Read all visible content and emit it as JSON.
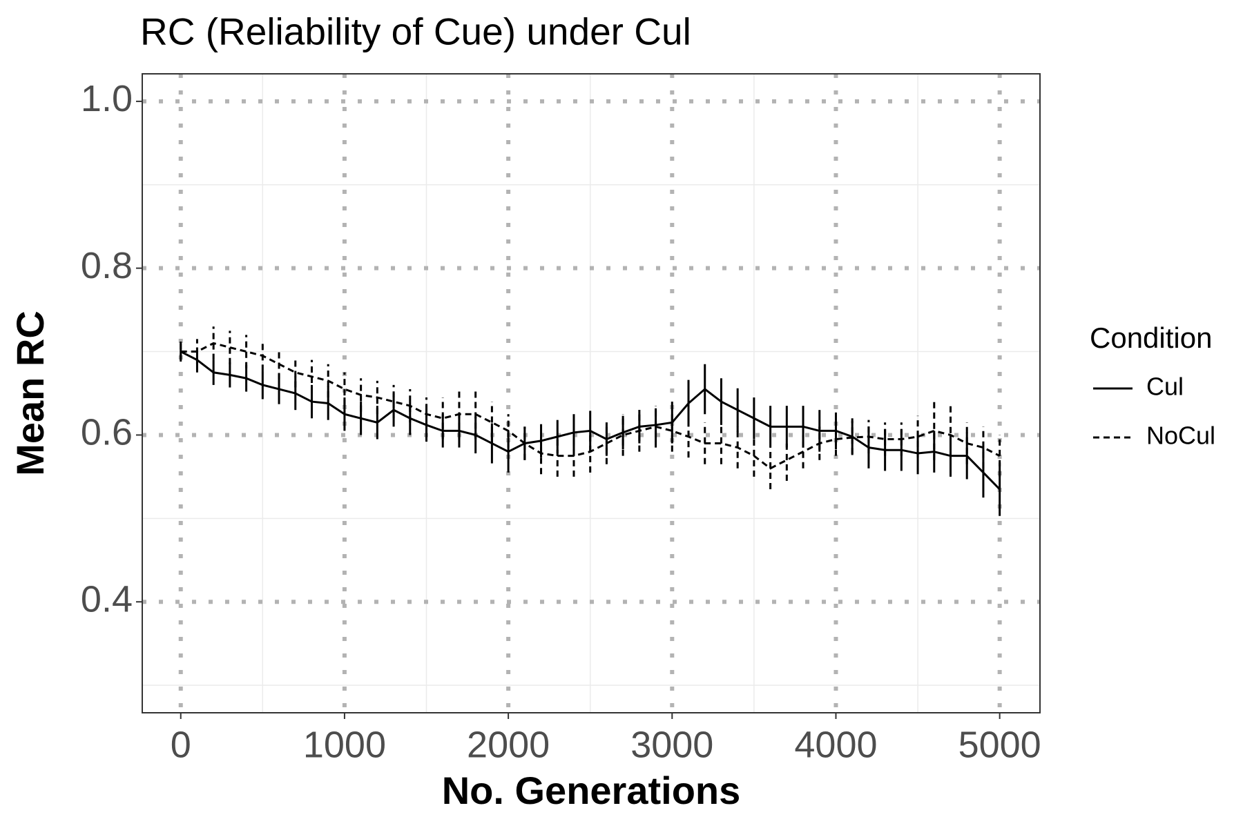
{
  "chart_data": {
    "type": "line",
    "title": "RC (Reliability of Cue) under Cul",
    "x_label": "No. Generations",
    "y_label": "Mean RC",
    "legend_title": "Condition",
    "legend": "right",
    "x": [
      0,
      100,
      200,
      300,
      400,
      500,
      600,
      700,
      800,
      900,
      1000,
      1100,
      1200,
      1300,
      1400,
      1500,
      1600,
      1700,
      1800,
      1900,
      2000,
      2100,
      2200,
      2300,
      2400,
      2500,
      2600,
      2700,
      2800,
      2900,
      3000,
      3100,
      3200,
      3300,
      3400,
      3500,
      3600,
      3700,
      3800,
      3900,
      4000,
      4100,
      4200,
      4300,
      4400,
      4500,
      4600,
      4700,
      4800,
      4900,
      5000
    ],
    "series": [
      {
        "name": "Cul",
        "color": "#000000",
        "linetype": "solid",
        "values": [
          0.7,
          0.69,
          0.675,
          0.672,
          0.668,
          0.66,
          0.655,
          0.65,
          0.64,
          0.638,
          0.625,
          0.62,
          0.615,
          0.63,
          0.62,
          0.612,
          0.605,
          0.605,
          0.6,
          0.59,
          0.58,
          0.59,
          0.593,
          0.598,
          0.603,
          0.605,
          0.595,
          0.603,
          0.61,
          0.612,
          0.615,
          0.638,
          0.655,
          0.64,
          0.63,
          0.62,
          0.61,
          0.61,
          0.61,
          0.605,
          0.605,
          0.598,
          0.585,
          0.582,
          0.582,
          0.578,
          0.58,
          0.575,
          0.575,
          0.555,
          0.535
        ],
        "errors": [
          0.012,
          0.015,
          0.015,
          0.015,
          0.016,
          0.017,
          0.018,
          0.02,
          0.02,
          0.02,
          0.02,
          0.02,
          0.02,
          0.02,
          0.02,
          0.02,
          0.02,
          0.02,
          0.022,
          0.024,
          0.025,
          0.02,
          0.02,
          0.02,
          0.022,
          0.024,
          0.02,
          0.02,
          0.02,
          0.02,
          0.025,
          0.028,
          0.03,
          0.028,
          0.026,
          0.025,
          0.025,
          0.025,
          0.025,
          0.025,
          0.022,
          0.022,
          0.025,
          0.025,
          0.025,
          0.025,
          0.025,
          0.025,
          0.028,
          0.03,
          0.032
        ]
      },
      {
        "name": "NoCul",
        "color": "#000000",
        "linetype": "dashed",
        "values": [
          0.7,
          0.7,
          0.71,
          0.705,
          0.7,
          0.695,
          0.685,
          0.675,
          0.67,
          0.665,
          0.655,
          0.648,
          0.645,
          0.64,
          0.635,
          0.625,
          0.62,
          0.625,
          0.625,
          0.615,
          0.605,
          0.59,
          0.578,
          0.575,
          0.575,
          0.58,
          0.59,
          0.6,
          0.605,
          0.61,
          0.605,
          0.598,
          0.59,
          0.59,
          0.585,
          0.575,
          0.56,
          0.57,
          0.58,
          0.59,
          0.595,
          0.597,
          0.598,
          0.595,
          0.595,
          0.598,
          0.605,
          0.6,
          0.59,
          0.585,
          0.575
        ],
        "errors": [
          0.01,
          0.015,
          0.02,
          0.02,
          0.02,
          0.018,
          0.018,
          0.018,
          0.02,
          0.02,
          0.02,
          0.02,
          0.02,
          0.02,
          0.02,
          0.02,
          0.025,
          0.03,
          0.03,
          0.025,
          0.02,
          0.02,
          0.025,
          0.025,
          0.025,
          0.025,
          0.025,
          0.025,
          0.025,
          0.025,
          0.025,
          0.025,
          0.025,
          0.025,
          0.025,
          0.025,
          0.025,
          0.025,
          0.02,
          0.02,
          0.02,
          0.02,
          0.02,
          0.02,
          0.02,
          0.025,
          0.035,
          0.035,
          0.025,
          0.025,
          0.025
        ]
      }
    ],
    "xlim": [
      -235,
      5246
    ],
    "ylim": [
      0.267,
      1.033
    ],
    "xticks": [
      0,
      1000,
      2000,
      3000,
      4000,
      5000
    ],
    "yticks": [
      0.4,
      0.6,
      0.8,
      {
        "value": 1,
        "label": "1.0"
      }
    ],
    "minor_xticks": [
      500,
      1500,
      2500,
      3500,
      4500
    ],
    "minor_yticks": [
      0.3,
      0.5,
      0.7,
      0.9
    ],
    "grid": true
  }
}
